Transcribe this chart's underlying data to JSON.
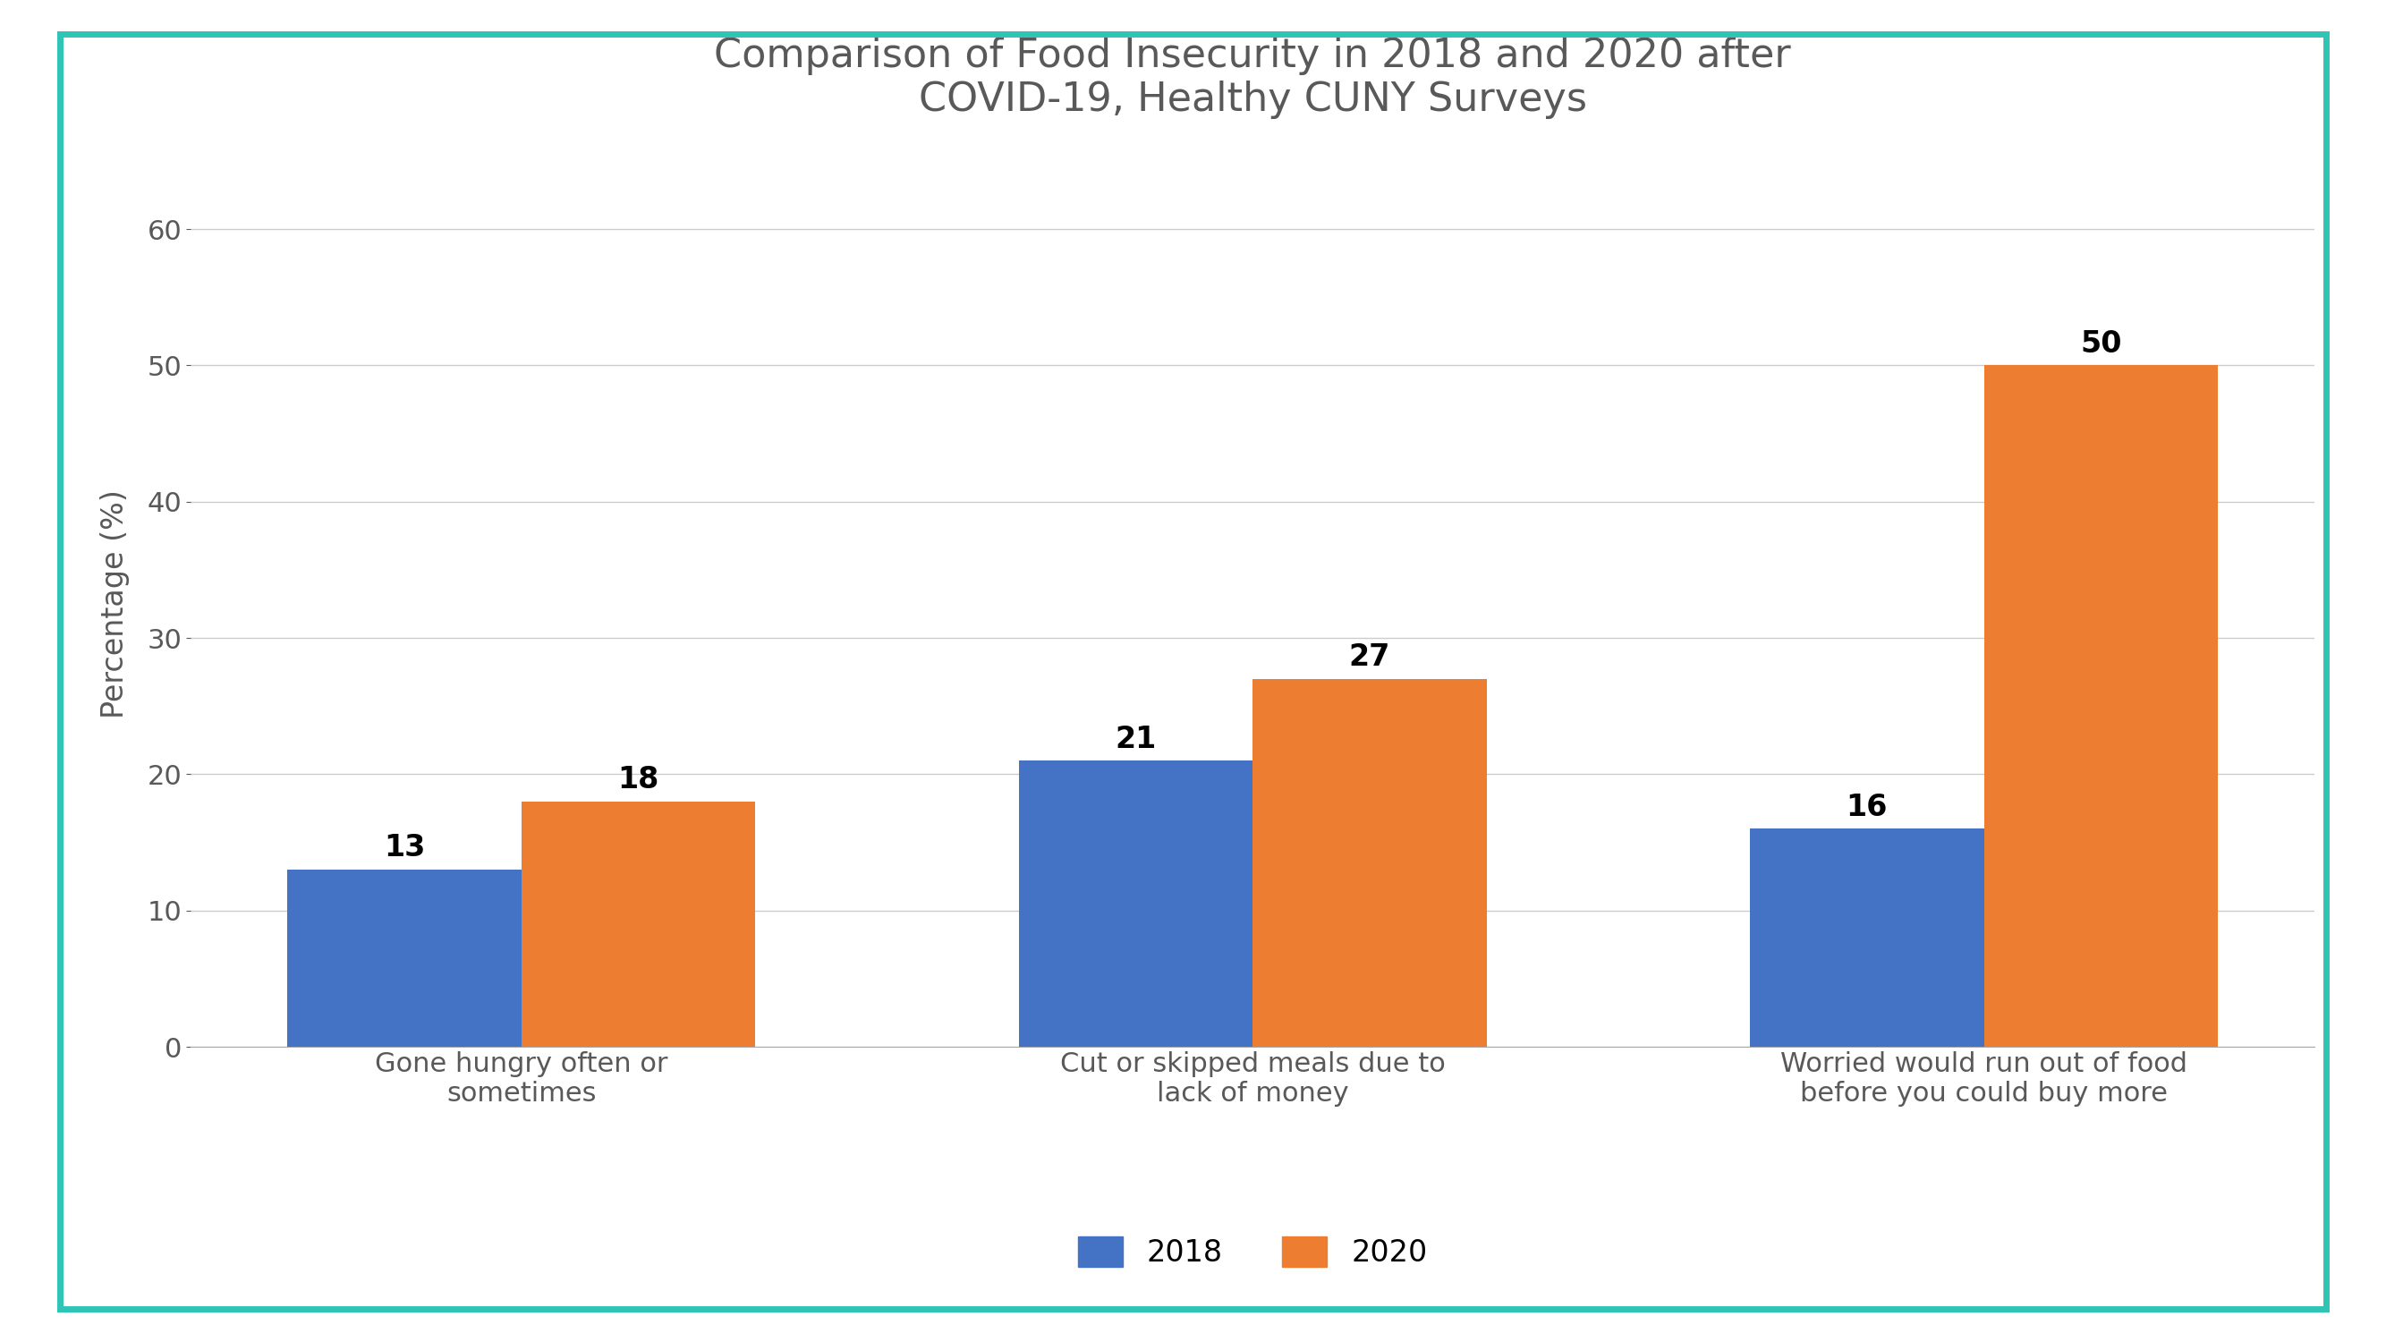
{
  "title": "Comparison of Food Insecurity in 2018 and 2020 after\nCOVID-19, Healthy CUNY Surveys",
  "categories": [
    "Gone hungry often or\nsometimes",
    "Cut or skipped meals due to\nlack of money",
    "Worried would run out of food\nbefore you could buy more"
  ],
  "values_2018": [
    13,
    21,
    16
  ],
  "values_2020": [
    18,
    27,
    50
  ],
  "color_2018": "#4472C4",
  "color_2020": "#ED7D31",
  "ylabel": "Percentage (%)",
  "ylim": [
    0,
    65
  ],
  "yticks": [
    0,
    10,
    20,
    30,
    40,
    50,
    60
  ],
  "legend_labels": [
    "2018",
    "2020"
  ],
  "bar_width": 0.32,
  "title_fontsize": 32,
  "label_fontsize": 24,
  "tick_fontsize": 22,
  "legend_fontsize": 24,
  "value_fontsize": 24,
  "background_color": "#ffffff",
  "border_color": "#2EC4B6",
  "grid_color": "#cccccc",
  "title_color": "#595959",
  "tick_color": "#595959"
}
